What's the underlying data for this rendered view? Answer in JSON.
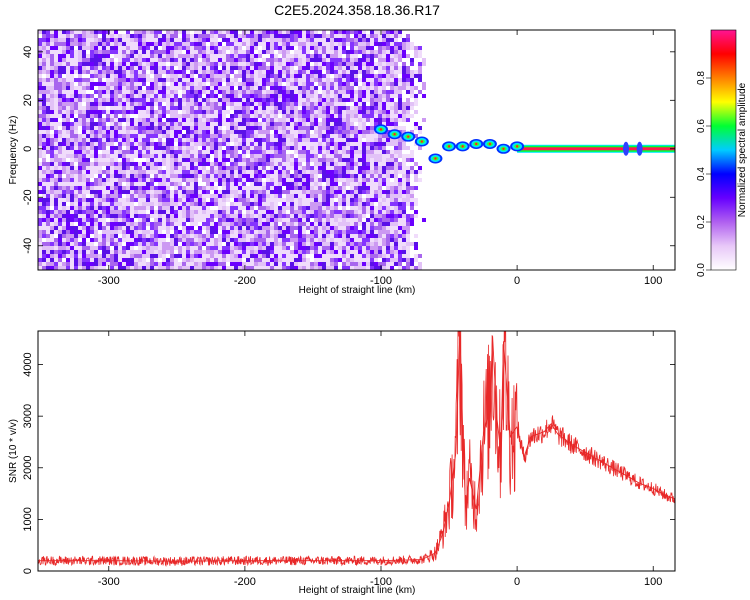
{
  "title": "C2E5.2024.358.18.36.R17",
  "chart_data": [
    {
      "type": "heatmap",
      "title": "C2E5.2024.358.18.36.R17",
      "xlabel": "Height of straight line (km)",
      "ylabel": "Frequency (Hz)",
      "xlim": [
        -352,
        116
      ],
      "ylim": [
        -50,
        49
      ],
      "xticks": [
        "-300",
        "-200",
        "-100",
        "0",
        "100"
      ],
      "yticks": [
        "-40",
        "-20",
        "0",
        "20",
        "40"
      ],
      "noise_region_x": [
        -352,
        -75
      ],
      "signal_ridge": {
        "x": [
          -100,
          -90,
          -80,
          -70,
          -60,
          -50,
          -40,
          -30,
          -20,
          -10,
          0,
          20,
          50,
          80,
          90,
          116
        ],
        "frequency": [
          8,
          6,
          5,
          3,
          -4,
          1,
          1,
          2,
          2,
          0,
          1,
          0,
          0,
          0,
          0,
          0
        ]
      },
      "colorbar": {
        "label": "Normalized spectral amplitude",
        "ticks": [
          "0.0",
          "0.2",
          "0.4",
          "0.6",
          "0.8"
        ],
        "range": [
          0,
          1
        ],
        "colors": [
          "#ffffff",
          "#e8c8f8",
          "#b060f0",
          "#6600ff",
          "#0000ff",
          "#00ccff",
          "#00ff33",
          "#ffff00",
          "#ff8000",
          "#ff0000",
          "#ff1493"
        ]
      },
      "grid": false
    },
    {
      "type": "line",
      "xlabel": "Height of straight line (km)",
      "ylabel": "SNR (10 * v/v)",
      "xlim": [
        -352,
        116
      ],
      "ylim": [
        0,
        4650
      ],
      "xticks": [
        "-300",
        "-200",
        "-100",
        "0",
        "100"
      ],
      "yticks": [
        "0",
        "1000",
        "2000",
        "3000",
        "4000"
      ],
      "series": [
        {
          "color": "#e82828",
          "x": [
            -352,
            -300,
            -250,
            -200,
            -150,
            -100,
            -70,
            -60,
            -55,
            -50,
            -45,
            -42,
            -40,
            -38,
            -35,
            -30,
            -25,
            -20,
            -18,
            -15,
            -12,
            -10,
            -5,
            0,
            5,
            10,
            20,
            25,
            30,
            40,
            50,
            60,
            70,
            80,
            90,
            100,
            110,
            116
          ],
          "y": [
            200,
            200,
            190,
            200,
            200,
            200,
            220,
            350,
            700,
            1300,
            2300,
            4650,
            2700,
            1300,
            1800,
            1200,
            2600,
            3200,
            4550,
            3000,
            2300,
            4450,
            2600,
            2800,
            2200,
            2600,
            2700,
            2850,
            2650,
            2450,
            2300,
            2150,
            2000,
            1850,
            1700,
            1600,
            1450,
            1400
          ]
        }
      ],
      "grid": false
    }
  ]
}
